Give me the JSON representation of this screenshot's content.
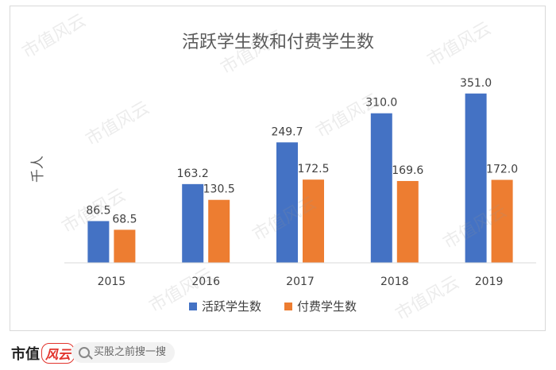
{
  "chart_data": {
    "type": "bar",
    "title": "活跃学生数和付费学生数",
    "ylabel": "千人",
    "xlabel": "",
    "categories": [
      "2015",
      "2016",
      "2017",
      "2018",
      "2019"
    ],
    "series": [
      {
        "name": "活跃学生数",
        "color": "#4472c4",
        "values": [
          86.5,
          163.2,
          249.7,
          310.0,
          351.0
        ]
      },
      {
        "name": "付费学生数",
        "color": "#ed7d31",
        "values": [
          68.5,
          130.5,
          172.5,
          169.6,
          172.0
        ]
      }
    ],
    "ylim": [
      0,
      400
    ],
    "grid": false,
    "legend_position": "bottom",
    "value_format_decimals": 1
  },
  "watermark_text": "市值风云",
  "footer": {
    "brand_main": "市值",
    "brand_script": "风云",
    "search_label": "买股之前搜一搜"
  }
}
